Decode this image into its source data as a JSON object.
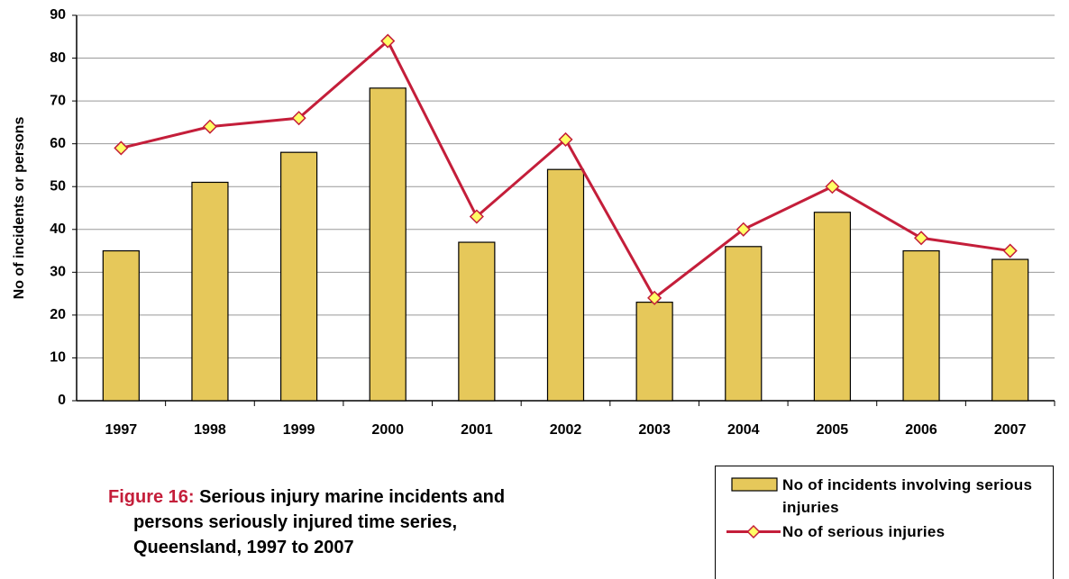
{
  "chart_data": {
    "type": "bar",
    "caption": {
      "label": "Figure 16:",
      "lines": [
        "Serious injury marine incidents and",
        "persons seriously injured time series,",
        "Queensland, 1997 to 2007"
      ]
    },
    "y_label": "No of incidents or persons",
    "categories": [
      "1997",
      "1998",
      "1999",
      "2000",
      "2001",
      "2002",
      "2003",
      "2004",
      "2005",
      "2006",
      "2007"
    ],
    "series": [
      {
        "name": "No of incidents involving serious injuries",
        "type": "bar",
        "color": "#e6c85a",
        "values": [
          35,
          51,
          58,
          73,
          37,
          54,
          23,
          36,
          44,
          35,
          33
        ]
      },
      {
        "name": "No of serious injuries",
        "type": "line",
        "color": "#c41e3a",
        "marker_color": "#ffff66",
        "values": [
          59,
          64,
          66,
          84,
          43,
          61,
          24,
          40,
          50,
          38,
          35
        ]
      }
    ],
    "ylim": [
      0,
      90
    ],
    "yticks": [
      0,
      10,
      20,
      30,
      40,
      50,
      60,
      70,
      80,
      90
    ],
    "grid": true
  }
}
